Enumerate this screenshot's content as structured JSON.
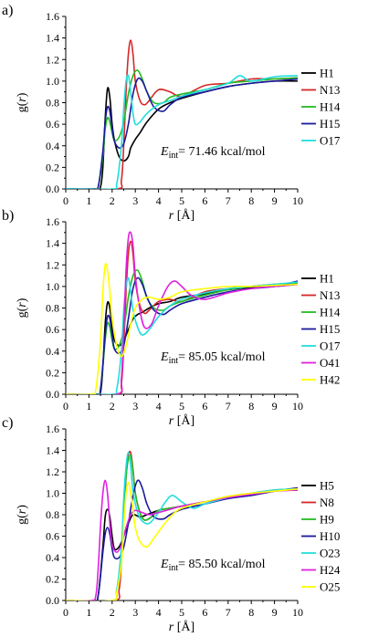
{
  "chart_data": [
    {
      "type": "line",
      "panel_label": "a)",
      "xlabel_var": "r",
      "xlabel_unit": "[Å]",
      "ylabel_prefix": "g(",
      "ylabel_var": "r",
      "ylabel_suffix": ")",
      "xlim": [
        0,
        10
      ],
      "ylim": [
        0,
        1.6
      ],
      "xticks": [
        0,
        1,
        2,
        3,
        4,
        5,
        6,
        7,
        8,
        9,
        10
      ],
      "yticks": [
        "0.0",
        "0.2",
        "0.4",
        "0.6",
        "0.8",
        "1.0",
        "1.2",
        "1.4",
        "1.6"
      ],
      "annotation": {
        "E": "E",
        "sub": "int",
        "text": "= 71.46 kcal/mol"
      },
      "legend_position": "right",
      "series": [
        {
          "name": "H1",
          "color": "#000000",
          "x": [
            1.3,
            1.5,
            1.6,
            1.7,
            1.8,
            1.9,
            2.0,
            2.1,
            2.3,
            2.5,
            2.7,
            2.8,
            3.0,
            3.2,
            3.5,
            4.0,
            4.5,
            5.0,
            6.0,
            7.0,
            8.0,
            9.0,
            10.0
          ],
          "y": [
            0,
            0.02,
            0.2,
            0.65,
            0.93,
            0.85,
            0.6,
            0.45,
            0.3,
            0.26,
            0.3,
            0.38,
            0.46,
            0.52,
            0.62,
            0.74,
            0.8,
            0.84,
            0.9,
            0.95,
            0.98,
            1.0,
            1.0
          ]
        },
        {
          "name": "N13",
          "color": "#d62728",
          "x": [
            2.2,
            2.4,
            2.5,
            2.6,
            2.7,
            2.8,
            2.9,
            3.0,
            3.2,
            3.4,
            3.6,
            4.0,
            4.5,
            5.0,
            6.0,
            7.0,
            8.0,
            9.0,
            10.0
          ],
          "y": [
            0,
            0.08,
            0.4,
            0.9,
            1.25,
            1.38,
            1.25,
            1.0,
            0.82,
            0.78,
            0.82,
            0.92,
            0.9,
            0.86,
            0.96,
            0.98,
            1.02,
            1.02,
            1.03
          ]
        },
        {
          "name": "H14",
          "color": "#22bb22",
          "x": [
            1.2,
            1.4,
            1.6,
            1.7,
            1.8,
            1.9,
            2.0,
            2.1,
            2.3,
            2.5,
            2.7,
            2.9,
            3.1,
            3.3,
            3.5,
            3.8,
            4.2,
            4.5,
            5.0,
            6.0,
            7.0,
            8.0,
            9.0,
            10.0
          ],
          "y": [
            0,
            0.02,
            0.3,
            0.55,
            0.66,
            0.62,
            0.52,
            0.45,
            0.48,
            0.62,
            0.88,
            1.05,
            1.1,
            1.02,
            0.9,
            0.8,
            0.8,
            0.85,
            0.88,
            0.92,
            0.98,
            1.0,
            1.02,
            1.03
          ]
        },
        {
          "name": "H15",
          "color": "#1a1a9c",
          "x": [
            1.2,
            1.4,
            1.6,
            1.7,
            1.8,
            1.9,
            2.0,
            2.1,
            2.3,
            2.5,
            2.7,
            2.9,
            3.1,
            3.3,
            3.5,
            3.8,
            4.2,
            4.5,
            5.0,
            6.0,
            7.0,
            8.0,
            9.0,
            10.0
          ],
          "y": [
            0,
            0.02,
            0.35,
            0.62,
            0.76,
            0.72,
            0.56,
            0.44,
            0.38,
            0.42,
            0.6,
            0.88,
            1.02,
            1.0,
            0.9,
            0.76,
            0.72,
            0.78,
            0.85,
            0.9,
            0.95,
            0.98,
            1.0,
            1.02
          ]
        },
        {
          "name": "O17",
          "color": "#22dddd",
          "x": [
            2.0,
            2.2,
            2.4,
            2.5,
            2.6,
            2.7,
            2.8,
            2.9,
            3.0,
            3.2,
            3.5,
            4.0,
            4.5,
            5.0,
            6.0,
            7.0,
            7.5,
            8.0,
            9.0,
            10.0
          ],
          "y": [
            0,
            0.05,
            0.4,
            0.75,
            1.0,
            1.05,
            0.9,
            0.7,
            0.6,
            0.62,
            0.7,
            0.78,
            0.82,
            0.86,
            0.92,
            0.98,
            1.05,
            1.0,
            1.04,
            1.05
          ]
        }
      ]
    },
    {
      "type": "line",
      "panel_label": "b)",
      "xlabel_var": "r",
      "xlabel_unit": "[Å]",
      "ylabel_prefix": "g(",
      "ylabel_var": "r",
      "ylabel_suffix": ")",
      "xlim": [
        0,
        10
      ],
      "ylim": [
        0,
        1.6
      ],
      "xticks": [
        0,
        1,
        2,
        3,
        4,
        5,
        6,
        7,
        8,
        9,
        10
      ],
      "yticks": [
        "0.0",
        "0.2",
        "0.4",
        "0.6",
        "0.8",
        "1.0",
        "1.2",
        "1.4",
        "1.6"
      ],
      "annotation": {
        "E": "E",
        "sub": "int",
        "text": "= 85.05 kcal/mol"
      },
      "legend_position": "right",
      "series": [
        {
          "name": "H1",
          "color": "#000000",
          "x": [
            1.3,
            1.5,
            1.6,
            1.7,
            1.8,
            1.9,
            2.0,
            2.1,
            2.3,
            2.5,
            2.7,
            2.9,
            3.1,
            3.3,
            3.6,
            4.0,
            4.5,
            5.0,
            6.0,
            7.0,
            8.0,
            9.0,
            10.0
          ],
          "y": [
            0,
            0.02,
            0.25,
            0.65,
            0.85,
            0.8,
            0.62,
            0.5,
            0.45,
            0.5,
            0.6,
            0.7,
            0.74,
            0.76,
            0.8,
            0.84,
            0.86,
            0.9,
            0.93,
            0.97,
            0.99,
            1.0,
            1.02
          ]
        },
        {
          "name": "N13",
          "color": "#d62728",
          "x": [
            2.2,
            2.4,
            2.5,
            2.6,
            2.7,
            2.8,
            2.9,
            3.0,
            3.2,
            3.4,
            3.6,
            4.0,
            4.5,
            5.0,
            6.0,
            7.0,
            8.0,
            9.0,
            10.0
          ],
          "y": [
            0,
            0.1,
            0.45,
            0.95,
            1.3,
            1.42,
            1.3,
            1.05,
            0.82,
            0.75,
            0.78,
            0.86,
            0.88,
            0.86,
            0.95,
            0.98,
            1.0,
            1.02,
            1.03
          ]
        },
        {
          "name": "H14",
          "color": "#22bb22",
          "x": [
            1.3,
            1.5,
            1.7,
            1.8,
            1.9,
            2.0,
            2.1,
            2.3,
            2.5,
            2.7,
            2.9,
            3.1,
            3.3,
            3.5,
            3.8,
            4.2,
            4.5,
            5.0,
            6.0,
            7.0,
            8.0,
            9.0,
            10.0
          ],
          "y": [
            0,
            0.05,
            0.5,
            0.66,
            0.62,
            0.5,
            0.42,
            0.45,
            0.6,
            0.9,
            1.1,
            1.15,
            1.05,
            0.9,
            0.8,
            0.78,
            0.82,
            0.86,
            0.92,
            0.97,
            1.0,
            1.02,
            1.03
          ]
        },
        {
          "name": "H15",
          "color": "#1a1a9c",
          "x": [
            1.3,
            1.5,
            1.7,
            1.8,
            1.9,
            2.0,
            2.1,
            2.3,
            2.5,
            2.7,
            2.9,
            3.1,
            3.3,
            3.5,
            3.8,
            4.2,
            4.5,
            5.0,
            6.0,
            7.0,
            8.0,
            9.0,
            10.0
          ],
          "y": [
            0,
            0.05,
            0.55,
            0.72,
            0.7,
            0.55,
            0.42,
            0.38,
            0.45,
            0.7,
            0.98,
            1.08,
            1.02,
            0.9,
            0.78,
            0.74,
            0.78,
            0.84,
            0.9,
            0.95,
            0.98,
            1.0,
            1.05
          ]
        },
        {
          "name": "O17",
          "color": "#22dddd",
          "x": [
            2.0,
            2.2,
            2.4,
            2.5,
            2.6,
            2.7,
            2.8,
            2.9,
            3.1,
            3.3,
            3.6,
            4.0,
            4.5,
            5.0,
            6.0,
            7.0,
            8.0,
            9.0,
            10.0
          ],
          "y": [
            0,
            0.05,
            0.4,
            0.78,
            1.0,
            1.08,
            0.95,
            0.78,
            0.62,
            0.55,
            0.6,
            0.72,
            0.82,
            0.88,
            0.94,
            0.98,
            1.0,
            1.02,
            1.04
          ]
        },
        {
          "name": "O41",
          "color": "#e020e0",
          "x": [
            2.2,
            2.4,
            2.5,
            2.6,
            2.7,
            2.8,
            2.9,
            3.0,
            3.2,
            3.4,
            3.7,
            4.0,
            4.4,
            4.7,
            5.0,
            5.4,
            6.0,
            7.0,
            8.0,
            9.0,
            10.0
          ],
          "y": [
            0,
            0.15,
            0.6,
            1.15,
            1.45,
            1.5,
            1.38,
            1.1,
            0.78,
            0.62,
            0.65,
            0.82,
            1.0,
            1.05,
            1.0,
            0.92,
            0.88,
            0.94,
            0.98,
            1.0,
            1.02
          ]
        },
        {
          "name": "H42",
          "color": "#ffff00",
          "x": [
            1.1,
            1.3,
            1.5,
            1.6,
            1.7,
            1.8,
            1.9,
            2.0,
            2.2,
            2.4,
            2.6,
            2.8,
            3.0,
            3.3,
            3.6,
            4.0,
            4.5,
            5.0,
            6.0,
            7.0,
            8.0,
            9.0,
            10.0
          ],
          "y": [
            0,
            0.05,
            0.5,
            0.95,
            1.2,
            1.15,
            0.95,
            0.7,
            0.45,
            0.35,
            0.45,
            0.65,
            0.8,
            0.88,
            0.9,
            0.88,
            0.9,
            0.95,
            0.98,
            1.0,
            1.0,
            1.01,
            1.02
          ]
        }
      ]
    },
    {
      "type": "line",
      "panel_label": "c)",
      "xlabel_var": "r",
      "xlabel_unit": "[Å]",
      "ylabel_prefix": "g(",
      "ylabel_var": "r",
      "ylabel_suffix": ")",
      "xlim": [
        0,
        10
      ],
      "ylim": [
        0,
        1.6
      ],
      "xticks": [
        0,
        1,
        2,
        3,
        4,
        5,
        6,
        7,
        8,
        9,
        10
      ],
      "yticks": [
        "0.0",
        "0.2",
        "0.4",
        "0.6",
        "0.8",
        "1.0",
        "1.2",
        "1.4",
        "1.6"
      ],
      "annotation": {
        "E": "E",
        "sub": "int",
        "text": "= 85.50 kcal/mol"
      },
      "legend_position": "right",
      "series": [
        {
          "name": "H5",
          "color": "#000000",
          "x": [
            1.2,
            1.4,
            1.6,
            1.7,
            1.8,
            1.9,
            2.0,
            2.1,
            2.3,
            2.5,
            2.7,
            2.9,
            3.2,
            3.5,
            4.0,
            4.5,
            5.0,
            6.0,
            7.0,
            8.0,
            9.0,
            10.0
          ],
          "y": [
            0,
            0.05,
            0.5,
            0.78,
            0.85,
            0.78,
            0.6,
            0.48,
            0.5,
            0.6,
            0.72,
            0.8,
            0.78,
            0.8,
            0.84,
            0.86,
            0.88,
            0.92,
            0.96,
            0.98,
            1.02,
            1.03
          ]
        },
        {
          "name": "N8",
          "color": "#d62728",
          "x": [
            2.1,
            2.3,
            2.4,
            2.5,
            2.6,
            2.7,
            2.8,
            2.9,
            3.0,
            3.2,
            3.4,
            3.7,
            4.0,
            4.5,
            5.0,
            6.0,
            7.0,
            8.0,
            9.0,
            10.0
          ],
          "y": [
            0,
            0.1,
            0.35,
            0.75,
            1.15,
            1.35,
            1.38,
            1.22,
            1.0,
            0.82,
            0.75,
            0.78,
            0.84,
            0.86,
            0.88,
            0.92,
            0.97,
            1.0,
            1.02,
            1.05
          ]
        },
        {
          "name": "H9",
          "color": "#22bb22",
          "x": [
            2.0,
            2.2,
            2.4,
            2.5,
            2.6,
            2.7,
            2.8,
            2.9,
            3.0,
            3.2,
            3.4,
            3.7,
            4.0,
            4.5,
            5.0,
            6.0,
            7.0,
            8.0,
            9.0,
            10.0
          ],
          "y": [
            0,
            0.1,
            0.4,
            0.8,
            1.15,
            1.32,
            1.35,
            1.2,
            1.0,
            0.82,
            0.75,
            0.78,
            0.84,
            0.86,
            0.88,
            0.92,
            0.97,
            1.0,
            1.03,
            1.04
          ]
        },
        {
          "name": "H10",
          "color": "#1a1a9c",
          "x": [
            1.2,
            1.4,
            1.6,
            1.7,
            1.8,
            1.9,
            2.0,
            2.1,
            2.3,
            2.5,
            2.7,
            2.9,
            3.1,
            3.3,
            3.5,
            3.8,
            4.2,
            4.5,
            5.0,
            6.0,
            7.0,
            8.0,
            9.0,
            10.0
          ],
          "y": [
            0,
            0.05,
            0.45,
            0.62,
            0.68,
            0.62,
            0.48,
            0.4,
            0.4,
            0.5,
            0.72,
            0.98,
            1.12,
            1.05,
            0.9,
            0.78,
            0.76,
            0.8,
            0.85,
            0.9,
            0.95,
            0.98,
            1.02,
            1.05
          ]
        },
        {
          "name": "O23",
          "color": "#22dddd",
          "x": [
            2.0,
            2.2,
            2.4,
            2.5,
            2.6,
            2.7,
            2.8,
            2.9,
            3.1,
            3.3,
            3.6,
            4.0,
            4.3,
            4.6,
            5.0,
            5.5,
            6.0,
            7.0,
            8.0,
            9.0,
            10.0
          ],
          "y": [
            0,
            0.1,
            0.5,
            0.95,
            1.25,
            1.38,
            1.25,
            1.02,
            0.82,
            0.74,
            0.72,
            0.82,
            0.92,
            0.98,
            0.92,
            0.86,
            0.9,
            0.96,
            1.0,
            1.03,
            1.04
          ]
        },
        {
          "name": "H24",
          "color": "#e020e0",
          "x": [
            1.1,
            1.3,
            1.4,
            1.5,
            1.6,
            1.7,
            1.8,
            1.9,
            2.0,
            2.2,
            2.4,
            2.6,
            2.8,
            3.0,
            3.3,
            3.6,
            4.0,
            4.5,
            5.0,
            6.0,
            7.0,
            8.0,
            9.0,
            10.0
          ],
          "y": [
            0,
            0.05,
            0.3,
            0.7,
            1.0,
            1.12,
            1.0,
            0.72,
            0.52,
            0.45,
            0.52,
            0.68,
            0.8,
            0.84,
            0.82,
            0.8,
            0.82,
            0.85,
            0.88,
            0.92,
            0.96,
            0.99,
            1.02,
            1.03
          ]
        },
        {
          "name": "O25",
          "color": "#ffff00",
          "x": [
            2.0,
            2.2,
            2.4,
            2.5,
            2.6,
            2.7,
            2.8,
            2.9,
            3.0,
            3.2,
            3.5,
            3.8,
            4.2,
            4.6,
            5.0,
            6.0,
            7.0,
            8.0,
            9.0,
            10.0
          ],
          "y": [
            0,
            0.08,
            0.35,
            0.7,
            1.0,
            1.1,
            1.0,
            0.85,
            0.68,
            0.55,
            0.5,
            0.58,
            0.7,
            0.8,
            0.86,
            0.92,
            0.97,
            1.0,
            1.02,
            1.04
          ]
        }
      ]
    }
  ]
}
